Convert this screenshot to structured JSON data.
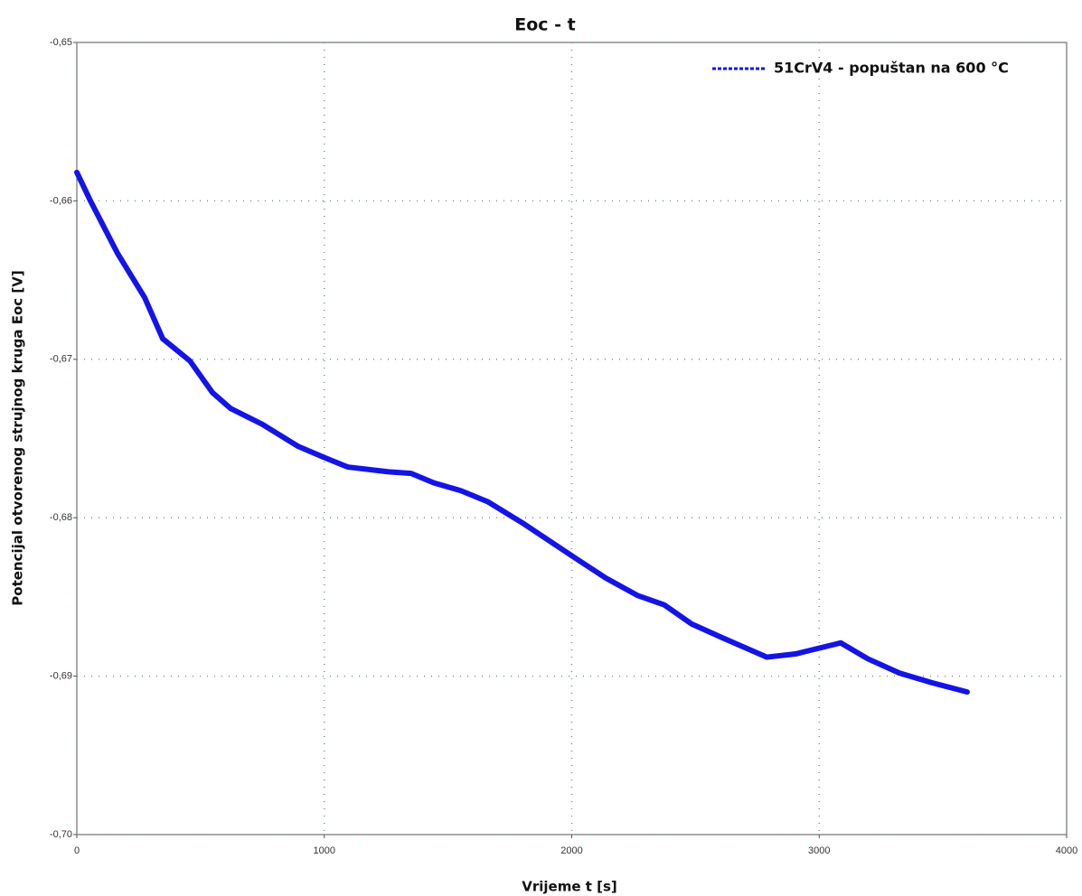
{
  "chart_data": {
    "type": "line",
    "title": "Eoc - t",
    "xlabel": "Vrijeme t [s]",
    "ylabel": "Potencijal otvorenog strujnog kruga Eoc [V]",
    "xlim": [
      0,
      4000
    ],
    "xticks": [
      0,
      1000,
      2000,
      3000,
      4000
    ],
    "ylim": [
      -0.7,
      -0.65
    ],
    "yticks": [
      {
        "value": -0.7,
        "label": "-0,70"
      },
      {
        "value": -0.69,
        "label": "-0,69"
      },
      {
        "value": -0.68,
        "label": "-0,68"
      },
      {
        "value": -0.67,
        "label": "-0,67"
      },
      {
        "value": -0.66,
        "label": "-0,66"
      },
      {
        "value": -0.65,
        "label": "-0,65"
      }
    ],
    "grid": true,
    "legend": "upper right",
    "series": [
      {
        "name": "51CrV4 - popuštan na 600 °C",
        "color": "#1414e6",
        "x": [
          0,
          55,
          164,
          274,
          347,
          457,
          548,
          621,
          749,
          895,
          1000,
          1095,
          1260,
          1351,
          1443,
          1553,
          1662,
          1808,
          2000,
          2137,
          2265,
          2374,
          2484,
          2612,
          2788,
          2904,
          3087,
          3196,
          3324,
          3452,
          3598
        ],
        "values": [
          -0.6582,
          -0.66,
          -0.6633,
          -0.6661,
          -0.6687,
          -0.6701,
          -0.6721,
          -0.6731,
          -0.6741,
          -0.6755,
          -0.6762,
          -0.6768,
          -0.6771,
          -0.6772,
          -0.6778,
          -0.6783,
          -0.679,
          -0.6804,
          -0.6824,
          -0.6838,
          -0.6849,
          -0.6855,
          -0.6867,
          -0.6876,
          -0.6888,
          -0.6886,
          -0.6879,
          -0.6889,
          -0.6898,
          -0.6904,
          -0.691
        ]
      }
    ]
  }
}
